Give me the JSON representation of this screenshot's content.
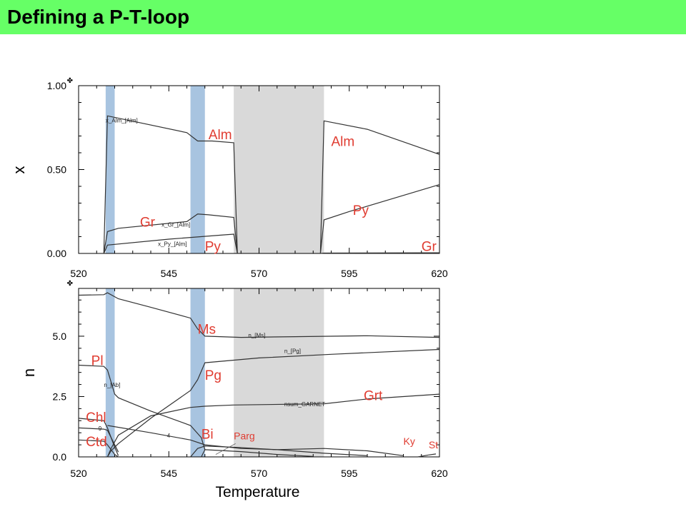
{
  "slide": {
    "title": "Defining a P-T-loop"
  },
  "colors": {
    "title_bg": "#66ff66",
    "band_blue": "#a8c4e0",
    "band_gray": "#d9d9d9",
    "label_red": "#e03c31",
    "line": "#333333"
  },
  "chart_data": [
    {
      "type": "line",
      "ylabel": "x",
      "xlim": [
        520,
        620
      ],
      "ylim": [
        0,
        1
      ],
      "xticks": [
        520,
        545,
        570,
        595,
        620
      ],
      "yticks": [
        0,
        0.5,
        1
      ],
      "yticklabels": [
        "0.00",
        "0.50",
        "1.00"
      ],
      "shaded_ranges": [
        {
          "from": 527.5,
          "to": 530,
          "color": "blue"
        },
        {
          "from": 551,
          "to": 555,
          "color": "blue"
        },
        {
          "from": 563,
          "to": 588,
          "color": "gray"
        }
      ],
      "series": [
        {
          "name": "x_Alm_[Alm]",
          "segments": [
            [
              [
                527,
                0
              ],
              [
                528,
                0.82
              ],
              [
                550,
                0.72
              ],
              [
                553,
                0.67
              ],
              [
                557,
                0.67
              ],
              [
                563,
                0.66
              ],
              [
                564,
                0
              ]
            ],
            [
              [
                587,
                0
              ],
              [
                588,
                0.79
              ],
              [
                600,
                0.74
              ],
              [
                620,
                0.59
              ]
            ]
          ]
        },
        {
          "name": "x_Gr_[Alm]",
          "segments": [
            [
              [
                527,
                0
              ],
              [
                528,
                0.13
              ],
              [
                531,
                0.15
              ],
              [
                550,
                0.19
              ],
              [
                553,
                0.235
              ],
              [
                556,
                0.23
              ],
              [
                563,
                0.215
              ],
              [
                564,
                0
              ]
            ],
            [
              [
                587,
                0
              ],
              [
                588,
                0.2
              ],
              [
                595,
                0.25
              ],
              [
                620,
                0.41
              ]
            ]
          ]
        },
        {
          "name": "x_Py_[Alm]",
          "segments": [
            [
              [
                527,
                0
              ],
              [
                528,
                0.05
              ],
              [
                545,
                0.085
              ],
              [
                560,
                0.11
              ],
              [
                563,
                0.115
              ],
              [
                564,
                0
              ]
            ],
            [
              [
                587,
                0
              ],
              [
                588,
                0.002
              ],
              [
                620,
                0.004
              ]
            ]
          ]
        }
      ],
      "line_labels": [
        {
          "text": "x_Alm_[Alm]",
          "x": 527.5,
          "y": 0.78
        },
        {
          "text": "x_Gr_[Alm]",
          "x": 543,
          "y": 0.16
        },
        {
          "text": "x_Py_[Alm]",
          "x": 542,
          "y": 0.045
        }
      ],
      "annotations": [
        {
          "text": "Alm",
          "x": 556,
          "y": 0.68
        },
        {
          "text": "Alm",
          "x": 590,
          "y": 0.64
        },
        {
          "text": "Gr",
          "x": 537,
          "y": 0.16
        },
        {
          "text": "Py",
          "x": 555,
          "y": 0.015
        },
        {
          "text": "Py",
          "x": 596,
          "y": 0.23
        },
        {
          "text": "Gr",
          "x": 615,
          "y": 0.015
        }
      ]
    },
    {
      "type": "line",
      "xlabel": "Temperature",
      "ylabel": "n",
      "xlim": [
        520,
        620
      ],
      "ylim": [
        0,
        6.98
      ],
      "xticks": [
        520,
        545,
        570,
        595,
        620
      ],
      "yticks": [
        0,
        2.5,
        5
      ],
      "yticklabels": [
        "0.0",
        "2.5",
        "5.0"
      ],
      "shaded_ranges": [
        {
          "from": 527.5,
          "to": 530,
          "color": "blue"
        },
        {
          "from": 551,
          "to": 555,
          "color": "blue"
        },
        {
          "from": 563,
          "to": 588,
          "color": "gray"
        }
      ],
      "series": [
        {
          "name": "n_[Ms]",
          "segments": [
            [
              [
                520,
                6.7
              ],
              [
                527,
                6.72
              ],
              [
                528,
                6.8
              ],
              [
                531,
                6.55
              ],
              [
                540,
                6.2
              ],
              [
                551,
                5.75
              ],
              [
                553,
                5.3
              ],
              [
                555,
                5.0
              ],
              [
                565,
                4.95
              ],
              [
                580,
                4.98
              ],
              [
                600,
                5.02
              ],
              [
                620,
                4.95
              ]
            ]
          ]
        },
        {
          "name": "n_[Pg]",
          "segments": [
            [
              [
                528,
                0
              ],
              [
                529,
                0.25
              ],
              [
                531,
                0.55
              ],
              [
                540,
                1.6
              ],
              [
                551,
                2.75
              ],
              [
                553,
                3.2
              ],
              [
                555,
                3.9
              ],
              [
                570,
                4.1
              ],
              [
                590,
                4.25
              ],
              [
                620,
                4.45
              ]
            ]
          ]
        },
        {
          "name": "n_[Ab]",
          "segments": [
            [
              [
                520,
                3.8
              ],
              [
                527,
                3.75
              ],
              [
                528,
                3.6
              ],
              [
                530,
                2.6
              ],
              [
                531,
                2.45
              ],
              [
                540,
                1.9
              ],
              [
                551,
                1.3
              ],
              [
                554,
                0.8
              ],
              [
                555,
                0.3
              ]
            ]
          ]
        },
        {
          "name": "nsum_GARNET",
          "segments": [
            [
              [
                528,
                0
              ],
              [
                529,
                0.35
              ],
              [
                531,
                0.9
              ],
              [
                540,
                1.7
              ],
              [
                551,
                2.05
              ],
              [
                555,
                2.1
              ],
              [
                563,
                2.15
              ],
              [
                588,
                2.2
              ],
              [
                600,
                2.4
              ],
              [
                620,
                2.6
              ]
            ]
          ]
        },
        {
          "name": "Chl",
          "segments": [
            [
              [
                520,
                1.6
              ],
              [
                527,
                1.5
              ],
              [
                528,
                1.2
              ],
              [
                530,
                0.4
              ],
              [
                531,
                0.05
              ]
            ]
          ]
        },
        {
          "name": "Ctd",
          "segments": [
            [
              [
                520,
                0.7
              ],
              [
                527,
                0.65
              ],
              [
                528,
                0.5
              ],
              [
                530,
                0.1
              ],
              [
                531,
                0
              ]
            ]
          ]
        },
        {
          "name": "Bi",
          "segments": [
            [
              [
                551,
                0
              ],
              [
                553,
                0.35
              ],
              [
                555,
                0.45
              ],
              [
                563,
                0.4
              ],
              [
                575,
                0.3
              ],
              [
                588,
                0.15
              ],
              [
                600,
                0.05
              ]
            ]
          ]
        },
        {
          "name": "4",
          "segments": [
            [
              [
                528,
                1.3
              ],
              [
                540,
                1.0
              ],
              [
                551,
                0.7
              ],
              [
                555,
                0.5
              ],
              [
                565,
                0.35
              ],
              [
                575,
                0.3
              ],
              [
                588,
                0.35
              ],
              [
                600,
                0.25
              ],
              [
                610,
                0.05
              ]
            ]
          ]
        },
        {
          "name": "9",
          "segments": [
            [
              [
                520,
                1.2
              ],
              [
                527,
                1.15
              ],
              [
                528,
                1.1
              ],
              [
                531,
                0.2
              ]
            ]
          ]
        },
        {
          "name": "Parg",
          "segments": [
            [
              [
                554,
                0
              ],
              [
                555,
                0.3
              ],
              [
                565,
                0.22
              ],
              [
                575,
                0.1
              ],
              [
                585,
                0.02
              ]
            ]
          ]
        },
        {
          "name": "Ky",
          "segments": [
            [
              [
                614,
                0
              ],
              [
                617,
                0.08
              ]
            ]
          ]
        },
        {
          "name": "St",
          "segments": [
            [
              [
                617,
                0.08
              ],
              [
                619,
                0.12
              ]
            ]
          ]
        }
      ],
      "line_labels": [
        {
          "text": "n_[Ms]",
          "x": 567,
          "y": 4.95
        },
        {
          "text": "n_[Pg]",
          "x": 577,
          "y": 4.3
        },
        {
          "text": "n_[Ab]",
          "x": 527,
          "y": 2.9
        },
        {
          "text": "nsum_GARNET",
          "x": 577,
          "y": 2.1
        },
        {
          "text": "9",
          "x": 525.5,
          "y": 1.1
        },
        {
          "text": "4",
          "x": 544.5,
          "y": 0.8
        }
      ],
      "annotations": [
        {
          "text": "Ms",
          "x": 553,
          "y": 5.1
        },
        {
          "text": "Pl",
          "x": 523.5,
          "y": 3.8
        },
        {
          "text": "Pg",
          "x": 555,
          "y": 3.2
        },
        {
          "text": "Grt",
          "x": 599,
          "y": 2.35
        },
        {
          "text": "Chl",
          "x": 522,
          "y": 1.45
        },
        {
          "text": "Ctd",
          "x": 522,
          "y": 0.45
        },
        {
          "text": "Bi",
          "x": 554,
          "y": 0.75
        },
        {
          "text": "Parg",
          "x": 563,
          "y": 0.72
        },
        {
          "text": "Ky",
          "x": 610,
          "y": 0.5
        },
        {
          "text": "St",
          "x": 617,
          "y": 0.35
        }
      ]
    }
  ]
}
